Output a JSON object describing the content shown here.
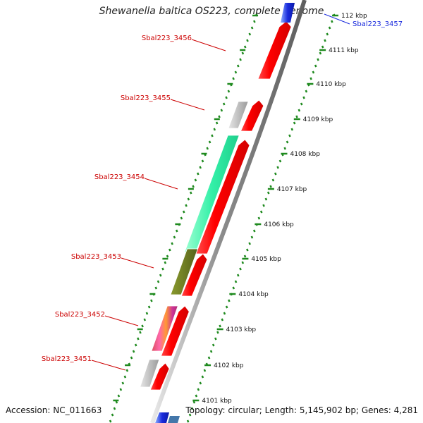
{
  "title": "Shewanella baltica OS223, complete genome",
  "footer": {
    "accession": "Accession: NC_011663",
    "topology": "Topology: circular; Length: 5,145,902 bp; Genes: 4,281"
  },
  "colors": {
    "forward_gene": "#ff0000",
    "forward_gene_light": "#ffdddd",
    "pseudo_gene": "#b8b8b8",
    "rna_gene": "#2ee8a0",
    "olive_gene": "#6b7a1e",
    "multi_gene": [
      "#ff66aa",
      "#ff9933",
      "#cc3399"
    ],
    "label_red": "#cc0000",
    "label_blue": "#1a2bdd",
    "backbone": "#888888",
    "tick": "#1f8a1f"
  },
  "gene_labels": [
    {
      "id": "label-3457",
      "text": "Sbal223_3457",
      "color": "blue"
    },
    {
      "id": "label-3456",
      "text": "Sbal223_3456",
      "color": "red"
    },
    {
      "id": "label-3455",
      "text": "Sbal223_3455",
      "color": "red"
    },
    {
      "id": "label-3454",
      "text": "Sbal223_3454",
      "color": "red"
    },
    {
      "id": "label-3453",
      "text": "Sbal223_3453",
      "color": "red"
    },
    {
      "id": "label-3452",
      "text": "Sbal223_3452",
      "color": "red"
    },
    {
      "id": "label-3451",
      "text": "Sbal223_3451",
      "color": "red"
    }
  ],
  "tick_labels": [
    "4101 kbp",
    "4102 kbp",
    "4103 kbp",
    "4104 kbp",
    "4105 kbp",
    "4106 kbp",
    "4107 kbp",
    "4108 kbp",
    "4109 kbp",
    "4110 kbp",
    "4111 kbp",
    "112 kbp"
  ]
}
